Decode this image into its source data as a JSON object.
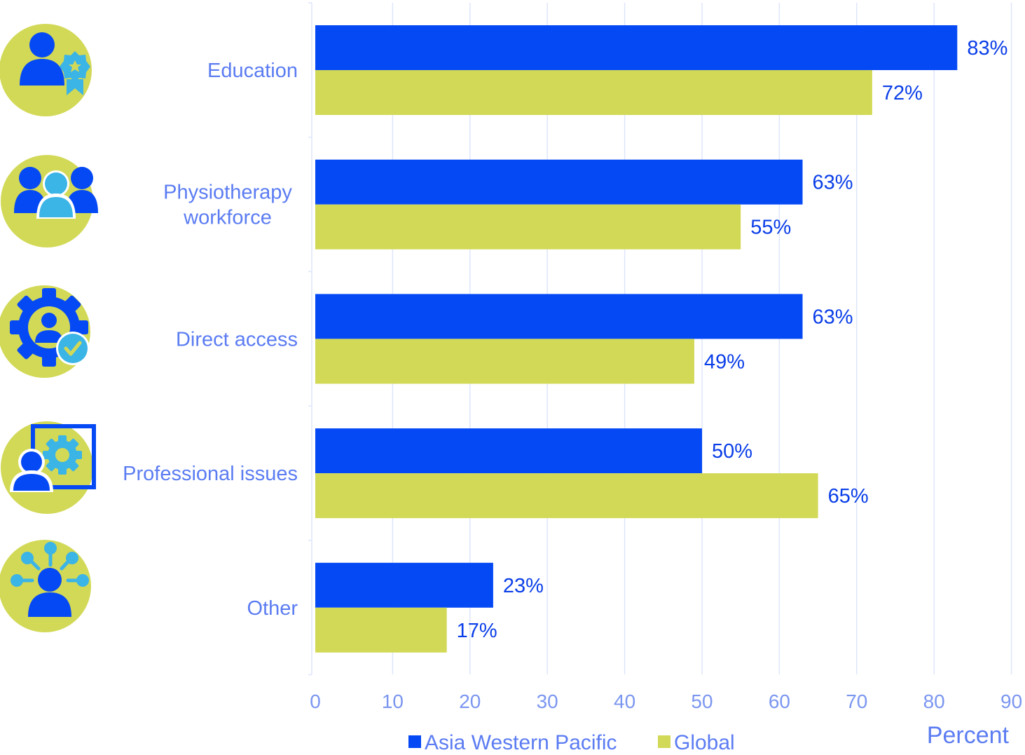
{
  "colors": {
    "series_primary": "#0549f5",
    "series_secondary": "#d2d957",
    "icon_circle": "#d2d957",
    "icon_dark": "#0549f5",
    "icon_light": "#3bb4e6",
    "gridline": "#dfe6fb"
  },
  "icons": [
    "education-person-award-icon",
    "workforce-group-icon",
    "direct-access-gear-person-check-icon",
    "professional-issues-board-gear-person-icon",
    "other-person-network-icon"
  ],
  "chart_data": {
    "type": "bar",
    "orientation": "horizontal",
    "categories": [
      "Education",
      "Physiotherapy workforce",
      "Direct access",
      "Professional issues",
      "Other"
    ],
    "category_lines": [
      [
        "Education"
      ],
      [
        "Physiotherapy",
        "workforce"
      ],
      [
        "Direct access"
      ],
      [
        "Professional issues"
      ],
      [
        "Other"
      ]
    ],
    "series": [
      {
        "name": "Asia Western Pacific",
        "values": [
          83,
          63,
          63,
          50,
          23
        ],
        "labels": [
          "83%",
          "63%",
          "63%",
          "50%",
          "23%"
        ],
        "color": "#0549f5"
      },
      {
        "name": "Global",
        "values": [
          72,
          55,
          49,
          65,
          17
        ],
        "labels": [
          "72%",
          "55%",
          "49%",
          "65%",
          "17%"
        ],
        "color": "#d2d957"
      }
    ],
    "xlim": [
      0,
      90
    ],
    "xticks": [
      0,
      10,
      20,
      30,
      40,
      50,
      60,
      70,
      80,
      90
    ],
    "xlabel": "Percent",
    "ylabel": "",
    "title": "",
    "grid": "vertical",
    "legend_position": "bottom"
  }
}
